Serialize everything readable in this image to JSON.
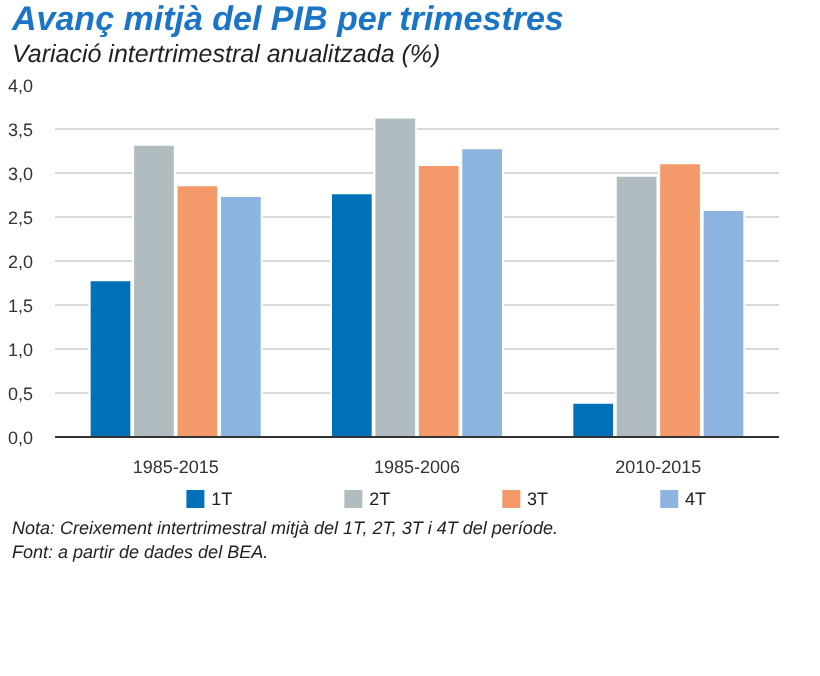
{
  "chart_data": {
    "type": "bar",
    "title": "Avanç mitjà del PIB per trimestres",
    "subtitle": "Variació intertrimestral anualitzada (%)",
    "categories": [
      "1985-2015",
      "1985-2006",
      "2010-2015"
    ],
    "series": [
      {
        "name": "1T",
        "color": "#0070b8",
        "values": [
          1.78,
          2.77,
          0.39
        ]
      },
      {
        "name": "2T",
        "color": "#b0bcc0",
        "values": [
          3.32,
          3.63,
          2.97
        ]
      },
      {
        "name": "3T",
        "color": "#f4996a",
        "values": [
          2.86,
          3.09,
          3.11
        ]
      },
      {
        "name": "4T",
        "color": "#8db3df",
        "values": [
          2.74,
          3.28,
          2.58
        ]
      }
    ],
    "ylim": [
      0,
      4
    ],
    "yticks": [
      {
        "value": 0,
        "label": "0,0"
      },
      {
        "value": 0.5,
        "label": "0,5"
      },
      {
        "value": 1,
        "label": "1,0"
      },
      {
        "value": 1.5,
        "label": "1,5"
      },
      {
        "value": 2,
        "label": "2,0"
      },
      {
        "value": 2.5,
        "label": "2,5"
      },
      {
        "value": 3,
        "label": "3,0"
      },
      {
        "value": 3.5,
        "label": "3,5"
      },
      {
        "value": 4,
        "label": "4,0"
      }
    ],
    "grid": "y",
    "legend": "bottom",
    "annotations": [
      "Nota: Creixement intertrimestral mitjà del 1T, 2T, 3T i 4T del període.",
      "Font: a partir de dades del BEA."
    ]
  }
}
